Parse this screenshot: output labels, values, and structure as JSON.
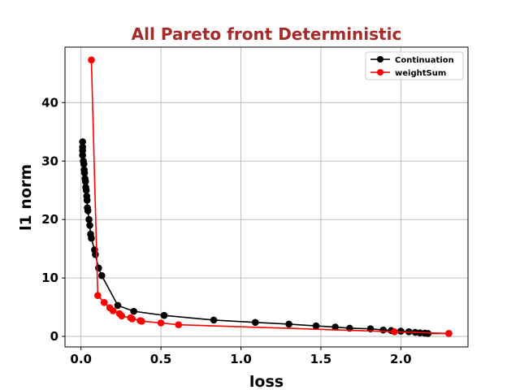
{
  "chart_data": {
    "type": "line",
    "title": "All Pareto front Deterministic",
    "xlabel": "loss",
    "ylabel": "l1 norm",
    "xlim": [
      -0.1,
      2.42
    ],
    "ylim": [
      -1.8,
      49.5
    ],
    "xticks": [
      0.0,
      0.5,
      1.0,
      1.5,
      2.0
    ],
    "xtick_labels": [
      "0.0",
      "0.5",
      "1.0",
      "1.5",
      "2.0"
    ],
    "yticks": [
      0,
      10,
      20,
      30,
      40
    ],
    "ytick_labels": [
      "0",
      "10",
      "20",
      "30",
      "40"
    ],
    "grid": true,
    "legend_position": "top-right",
    "series": [
      {
        "name": "Continuation",
        "color": "#000000",
        "marker": "circle",
        "points": [
          [
            0.01,
            33.3
          ],
          [
            0.01,
            32.4
          ],
          [
            0.01,
            31.8
          ],
          [
            0.01,
            31.0
          ],
          [
            0.015,
            30.0
          ],
          [
            0.018,
            29.5
          ],
          [
            0.02,
            28.5
          ],
          [
            0.022,
            28.0
          ],
          [
            0.025,
            27.0
          ],
          [
            0.028,
            26.5
          ],
          [
            0.03,
            25.5
          ],
          [
            0.033,
            25.0
          ],
          [
            0.036,
            24.0
          ],
          [
            0.038,
            23.3
          ],
          [
            0.04,
            22.0
          ],
          [
            0.043,
            21.5
          ],
          [
            0.05,
            20.0
          ],
          [
            0.055,
            19.0
          ],
          [
            0.06,
            17.5
          ],
          [
            0.065,
            16.8
          ],
          [
            0.085,
            14.8
          ],
          [
            0.09,
            14.0
          ],
          [
            0.11,
            11.7
          ],
          [
            0.13,
            10.4
          ],
          [
            0.23,
            5.3
          ],
          [
            0.33,
            4.3
          ],
          [
            0.52,
            3.6
          ],
          [
            0.83,
            2.8
          ],
          [
            1.09,
            2.4
          ],
          [
            1.3,
            2.1
          ],
          [
            1.47,
            1.8
          ],
          [
            1.59,
            1.6
          ],
          [
            1.68,
            1.4
          ],
          [
            1.81,
            1.3
          ],
          [
            1.89,
            1.1
          ],
          [
            1.94,
            1.0
          ],
          [
            2.0,
            0.9
          ],
          [
            2.05,
            0.8
          ],
          [
            2.09,
            0.7
          ],
          [
            2.12,
            0.6
          ],
          [
            2.15,
            0.55
          ],
          [
            2.17,
            0.5
          ],
          [
            2.3,
            0.5
          ]
        ]
      },
      {
        "name": "weightSum",
        "color": "#ff0000",
        "marker": "circle",
        "points": [
          [
            0.065,
            47.3
          ],
          [
            0.105,
            7.0
          ],
          [
            0.145,
            5.8
          ],
          [
            0.18,
            4.9
          ],
          [
            0.2,
            4.4
          ],
          [
            0.24,
            3.9
          ],
          [
            0.255,
            3.5
          ],
          [
            0.31,
            3.2
          ],
          [
            0.32,
            3.0
          ],
          [
            0.37,
            2.7
          ],
          [
            0.38,
            2.6
          ],
          [
            0.5,
            2.3
          ],
          [
            0.61,
            2.0
          ],
          [
            1.96,
            0.8
          ],
          [
            2.3,
            0.5
          ]
        ]
      }
    ]
  }
}
